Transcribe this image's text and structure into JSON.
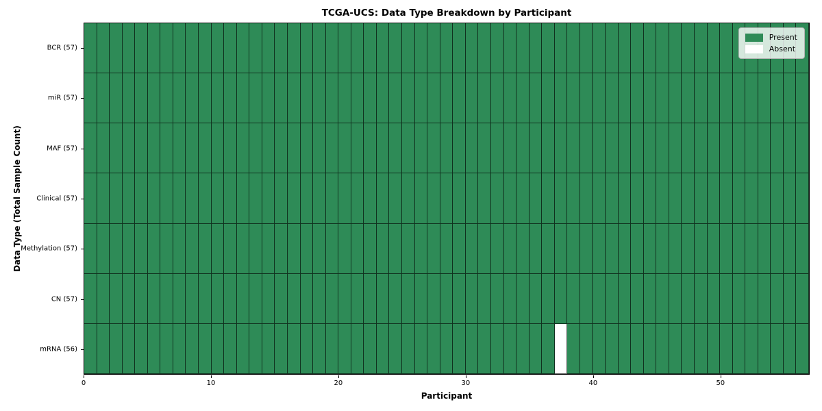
{
  "chart_data": {
    "type": "heatmap",
    "title": "TCGA-UCS: Data Type Breakdown by Participant",
    "xlabel": "Participant",
    "ylabel": "Data Type (Total Sample Count)",
    "n_participants": 57,
    "x_range": [
      0,
      57
    ],
    "xticks": [
      0,
      10,
      20,
      30,
      40,
      50
    ],
    "rows": [
      {
        "label": "BCR (57)",
        "data_type": "BCR",
        "sample_count": 57
      },
      {
        "label": "miR (57)",
        "data_type": "miR",
        "sample_count": 57
      },
      {
        "label": "MAF (57)",
        "data_type": "MAF",
        "sample_count": 57
      },
      {
        "label": "Clinical (57)",
        "data_type": "Clinical",
        "sample_count": 57
      },
      {
        "label": "Methylation (57)",
        "data_type": "Methylation",
        "sample_count": 57
      },
      {
        "label": "CN (57)",
        "data_type": "CN",
        "sample_count": 57
      },
      {
        "label": "mRNA (56)",
        "data_type": "mRNA",
        "sample_count": 56
      }
    ],
    "absent_cells": [
      {
        "row_label": "mRNA (56)",
        "participant_index": 37
      }
    ],
    "colors": {
      "present": "#2E8B57",
      "absent": "#FFFFFF",
      "cell_border": "rgba(0,0,0,0.65)"
    },
    "legend": [
      {
        "label": "Present",
        "color": "#2E8B57"
      },
      {
        "label": "Absent",
        "color": "#FFFFFF"
      }
    ],
    "legend_position": "upper right",
    "grid": "cell-borders"
  }
}
